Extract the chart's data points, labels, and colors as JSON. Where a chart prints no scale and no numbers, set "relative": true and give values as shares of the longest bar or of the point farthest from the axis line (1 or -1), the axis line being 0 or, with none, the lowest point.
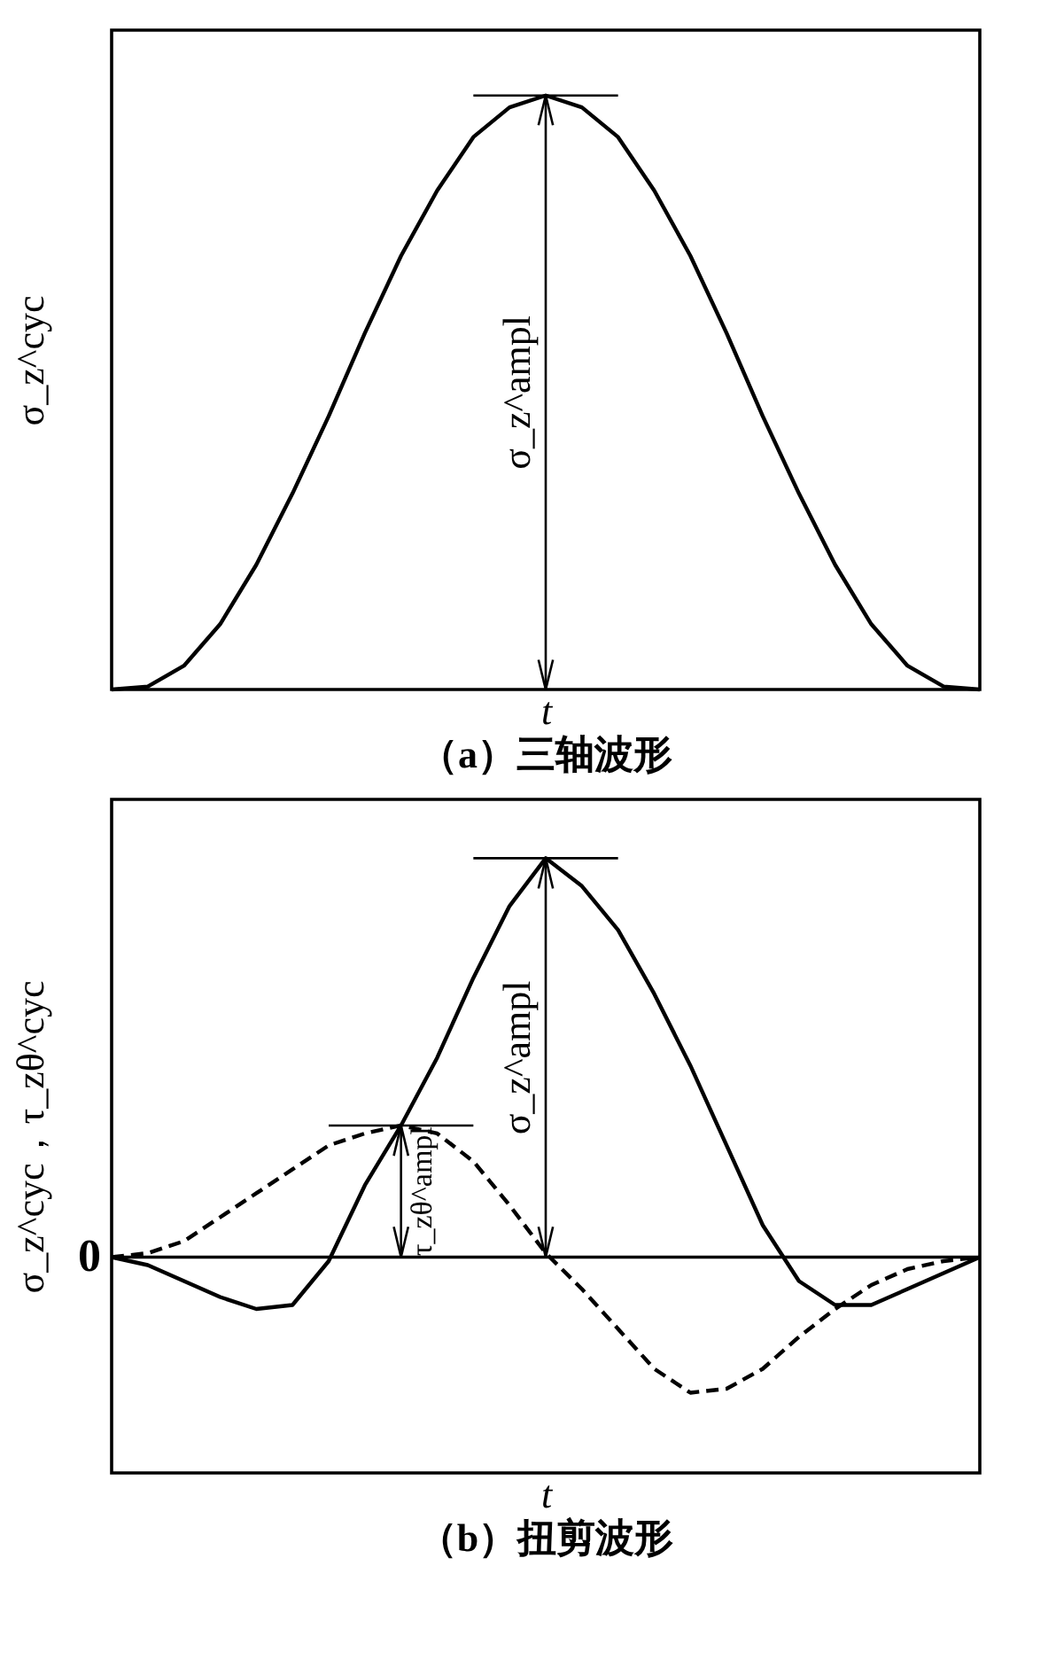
{
  "chart_data": [
    {
      "type": "line",
      "title": "（a）三轴波形",
      "xlabel": "t",
      "ylabel": "σ_z^cyc",
      "relative": true,
      "grid": false,
      "categories": [
        null,
        null,
        null,
        null,
        null,
        null,
        null,
        null,
        null,
        null,
        null,
        null,
        null,
        null,
        null,
        null,
        null,
        null,
        null,
        null,
        null,
        null,
        null,
        null,
        null
      ],
      "series": [
        {
          "color": "#000000",
          "line_style": "solid",
          "values": [
            0,
            0.005,
            0.04,
            0.11,
            0.21,
            0.33,
            0.46,
            0.6,
            0.73,
            0.84,
            0.93,
            0.98,
            1.0,
            0.98,
            0.93,
            0.84,
            0.73,
            0.6,
            0.46,
            0.33,
            0.21,
            0.11,
            0.04,
            0.005,
            0
          ]
        }
      ],
      "annotations": [
        "σ_z^ampl"
      ]
    },
    {
      "type": "line",
      "title": "（b）扭剪波形",
      "xlabel": "t",
      "ylabel": "σ_z^cyc，τ_zθ^cyc",
      "relative": true,
      "grid": false,
      "categories": [
        null,
        null,
        null,
        null,
        null,
        null,
        null,
        null,
        null,
        null,
        null,
        null,
        null,
        null,
        null,
        null,
        null,
        null,
        null,
        null,
        null,
        null,
        null,
        null,
        null
      ],
      "series": [
        {
          "color": "#000000",
          "line_style": "solid",
          "values": [
            0,
            -0.02,
            -0.06,
            -0.1,
            -0.13,
            -0.12,
            -0.01,
            0.18,
            0.33,
            0.5,
            0.7,
            0.88,
            1.0,
            0.93,
            0.82,
            0.66,
            0.48,
            0.28,
            0.08,
            -0.06,
            -0.12,
            -0.12,
            -0.08,
            -0.04,
            0
          ]
        },
        {
          "color": "#000000",
          "line_style": "dashed",
          "values": [
            0,
            0.01,
            0.04,
            0.1,
            0.16,
            0.22,
            0.28,
            0.31,
            0.33,
            0.31,
            0.24,
            0.13,
            0.01,
            -0.08,
            -0.18,
            -0.28,
            -0.34,
            -0.33,
            -0.28,
            -0.2,
            -0.13,
            -0.07,
            -0.03,
            -0.01,
            0
          ]
        }
      ],
      "ref_lines": [
        {
          "axis": "y",
          "value": 0,
          "label": "0",
          "color": "#000000"
        }
      ],
      "annotations": [
        "σ_z^ampl",
        "τ_zθ^ampl"
      ]
    }
  ]
}
